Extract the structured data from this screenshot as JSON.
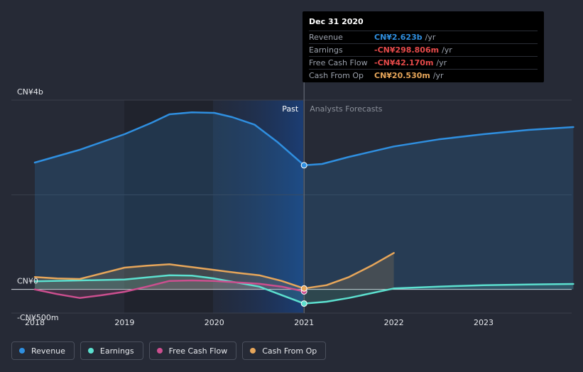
{
  "chart_data": {
    "type": "line",
    "x_ticks": [
      "2018",
      "2019",
      "2020",
      "2021",
      "2022",
      "2023"
    ],
    "y_labels": [
      "CN¥4b",
      "CN¥0",
      "-CN¥500m"
    ],
    "ylim": [
      -500,
      4000
    ],
    "past_label": "Past",
    "forecast_label": "Analysts Forecasts",
    "series": [
      {
        "name": "Revenue",
        "color": "#2f8fe0",
        "points": [
          [
            2018.0,
            2680
          ],
          [
            2018.5,
            2950
          ],
          [
            2019.0,
            3280
          ],
          [
            2019.3,
            3520
          ],
          [
            2019.5,
            3700
          ],
          [
            2019.75,
            3740
          ],
          [
            2020.0,
            3730
          ],
          [
            2020.2,
            3640
          ],
          [
            2020.45,
            3480
          ],
          [
            2020.7,
            3120
          ],
          [
            2021.0,
            2623
          ],
          [
            2021.2,
            2650
          ],
          [
            2021.5,
            2800
          ],
          [
            2022.0,
            3020
          ],
          [
            2022.5,
            3170
          ],
          [
            2023.0,
            3280
          ],
          [
            2023.5,
            3370
          ],
          [
            2024.0,
            3430
          ]
        ]
      },
      {
        "name": "Earnings",
        "color": "#5ce0cf",
        "points": [
          [
            2018.0,
            170
          ],
          [
            2018.5,
            190
          ],
          [
            2019.0,
            210
          ],
          [
            2019.5,
            300
          ],
          [
            2019.75,
            290
          ],
          [
            2020.0,
            230
          ],
          [
            2020.5,
            60
          ],
          [
            2020.75,
            -120
          ],
          [
            2021.0,
            -298.806
          ],
          [
            2021.25,
            -260
          ],
          [
            2021.5,
            -180
          ],
          [
            2022.0,
            20
          ],
          [
            2022.5,
            60
          ],
          [
            2023.0,
            90
          ],
          [
            2023.5,
            105
          ],
          [
            2024.0,
            115
          ]
        ]
      },
      {
        "name": "Free Cash Flow",
        "color": "#cc4f8f",
        "points": [
          [
            2018.0,
            0
          ],
          [
            2018.25,
            -100
          ],
          [
            2018.5,
            -180
          ],
          [
            2018.75,
            -120
          ],
          [
            2019.0,
            -50
          ],
          [
            2019.25,
            60
          ],
          [
            2019.5,
            180
          ],
          [
            2019.75,
            190
          ],
          [
            2020.0,
            180
          ],
          [
            2020.5,
            120
          ],
          [
            2020.75,
            60
          ],
          [
            2021.0,
            -42.17
          ]
        ]
      },
      {
        "name": "Cash From Op",
        "color": "#e7a65a",
        "points": [
          [
            2018.0,
            260
          ],
          [
            2018.25,
            230
          ],
          [
            2018.5,
            220
          ],
          [
            2018.75,
            340
          ],
          [
            2019.0,
            460
          ],
          [
            2019.25,
            500
          ],
          [
            2019.5,
            530
          ],
          [
            2019.75,
            470
          ],
          [
            2020.0,
            410
          ],
          [
            2020.25,
            350
          ],
          [
            2020.5,
            300
          ],
          [
            2020.75,
            180
          ],
          [
            2021.0,
            20.53
          ],
          [
            2021.25,
            90
          ],
          [
            2021.5,
            260
          ],
          [
            2021.75,
            500
          ],
          [
            2022.0,
            770
          ]
        ]
      }
    ],
    "highlight_x": 2021.0
  },
  "tooltip": {
    "date": "Dec 31 2020",
    "rows": [
      {
        "label": "Revenue",
        "value": "CN¥2.623b",
        "unit": "/yr",
        "color": "#2f8fe0"
      },
      {
        "label": "Earnings",
        "value": "-CN¥298.806m",
        "unit": "/yr",
        "color": "#e64a4a"
      },
      {
        "label": "Free Cash Flow",
        "value": "-CN¥42.170m",
        "unit": "/yr",
        "color": "#e64a4a"
      },
      {
        "label": "Cash From Op",
        "value": "CN¥20.530m",
        "unit": "/yr",
        "color": "#e7a65a"
      }
    ]
  },
  "legend": [
    {
      "label": "Revenue",
      "color": "#2f8fe0"
    },
    {
      "label": "Earnings",
      "color": "#5ce0cf"
    },
    {
      "label": "Free Cash Flow",
      "color": "#cc4f8f"
    },
    {
      "label": "Cash From Op",
      "color": "#e7a65a"
    }
  ]
}
